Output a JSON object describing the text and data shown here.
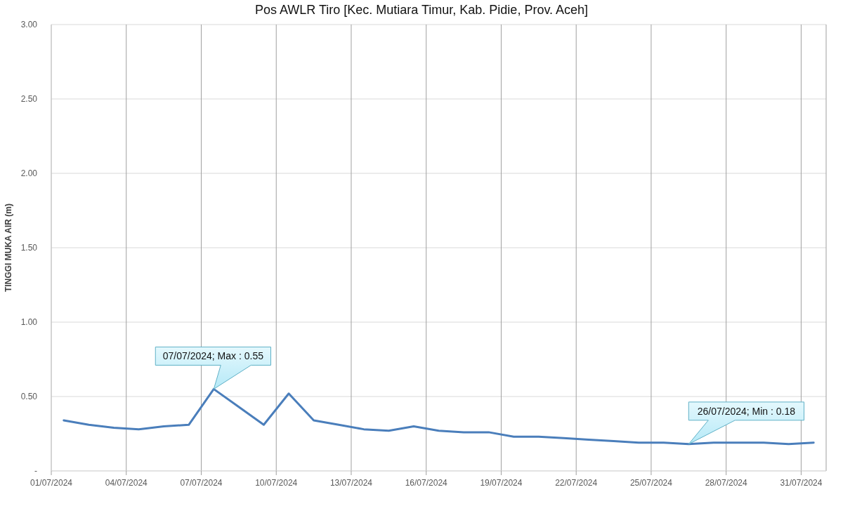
{
  "chart_data": {
    "type": "line",
    "title": "Pos AWLR Tiro [Kec. Mutiara Timur, Kab. Pidie, Prov. Aceh]",
    "ylabel": "TINGGI MUKA AIR (m)",
    "x": [
      "2024-07-01T12:00",
      "2024-07-02T12:00",
      "2024-07-03T12:00",
      "2024-07-04T12:00",
      "2024-07-05T12:00",
      "2024-07-06T12:00",
      "2024-07-07T12:00",
      "2024-07-08T12:00",
      "2024-07-09T12:00",
      "2024-07-10T12:00",
      "2024-07-11T12:00",
      "2024-07-12T12:00",
      "2024-07-13T12:00",
      "2024-07-14T12:00",
      "2024-07-15T12:00",
      "2024-07-16T12:00",
      "2024-07-17T12:00",
      "2024-07-18T12:00",
      "2024-07-19T12:00",
      "2024-07-20T12:00",
      "2024-07-21T12:00",
      "2024-07-22T12:00",
      "2024-07-23T12:00",
      "2024-07-24T12:00",
      "2024-07-25T12:00",
      "2024-07-26T12:00",
      "2024-07-27T12:00",
      "2024-07-28T12:00",
      "2024-07-29T12:00",
      "2024-07-30T12:00",
      "2024-07-31T12:00"
    ],
    "values": [
      0.34,
      0.31,
      0.29,
      0.28,
      0.3,
      0.31,
      0.55,
      0.43,
      0.31,
      0.52,
      0.34,
      0.31,
      0.28,
      0.27,
      0.3,
      0.27,
      0.26,
      0.26,
      0.23,
      0.23,
      0.22,
      0.21,
      0.2,
      0.19,
      0.19,
      0.18,
      0.19,
      0.19,
      0.19,
      0.18,
      0.19
    ],
    "color": "#4a7ebb",
    "marker": "none",
    "line_style": "solid",
    "xlim": [
      "2024-07-01",
      "2024-08-01"
    ],
    "xticks": [
      {
        "value": "2024-07-01",
        "label": "01/07/2024"
      },
      {
        "value": "2024-07-04",
        "label": "04/07/2024"
      },
      {
        "value": "2024-07-07",
        "label": "07/07/2024"
      },
      {
        "value": "2024-07-10",
        "label": "10/07/2024"
      },
      {
        "value": "2024-07-13",
        "label": "13/07/2024"
      },
      {
        "value": "2024-07-16",
        "label": "16/07/2024"
      },
      {
        "value": "2024-07-19",
        "label": "19/07/2024"
      },
      {
        "value": "2024-07-22",
        "label": "22/07/2024"
      },
      {
        "value": "2024-07-25",
        "label": "25/07/2024"
      },
      {
        "value": "2024-07-28",
        "label": "28/07/2024"
      },
      {
        "value": "2024-07-31",
        "label": "31/07/2024"
      }
    ],
    "ylim": [
      0,
      3
    ],
    "yticks": [
      {
        "value": 0,
        "label": "-"
      },
      {
        "value": 0.5,
        "label": "0.50"
      },
      {
        "value": 1,
        "label": "1.00"
      },
      {
        "value": 1.5,
        "label": "1.50"
      },
      {
        "value": 2,
        "label": "2.00"
      },
      {
        "value": 2.5,
        "label": "2.50"
      },
      {
        "value": 3,
        "label": "3.00"
      }
    ],
    "grid": true,
    "annotations": [
      {
        "text": "07/07/2024; Max : 0.55",
        "x": "2024-07-07T12:00",
        "y": 0.55
      },
      {
        "text": "26/07/2024; Min : 0.18",
        "x": "2024-07-26T12:00",
        "y": 0.18
      }
    ]
  }
}
